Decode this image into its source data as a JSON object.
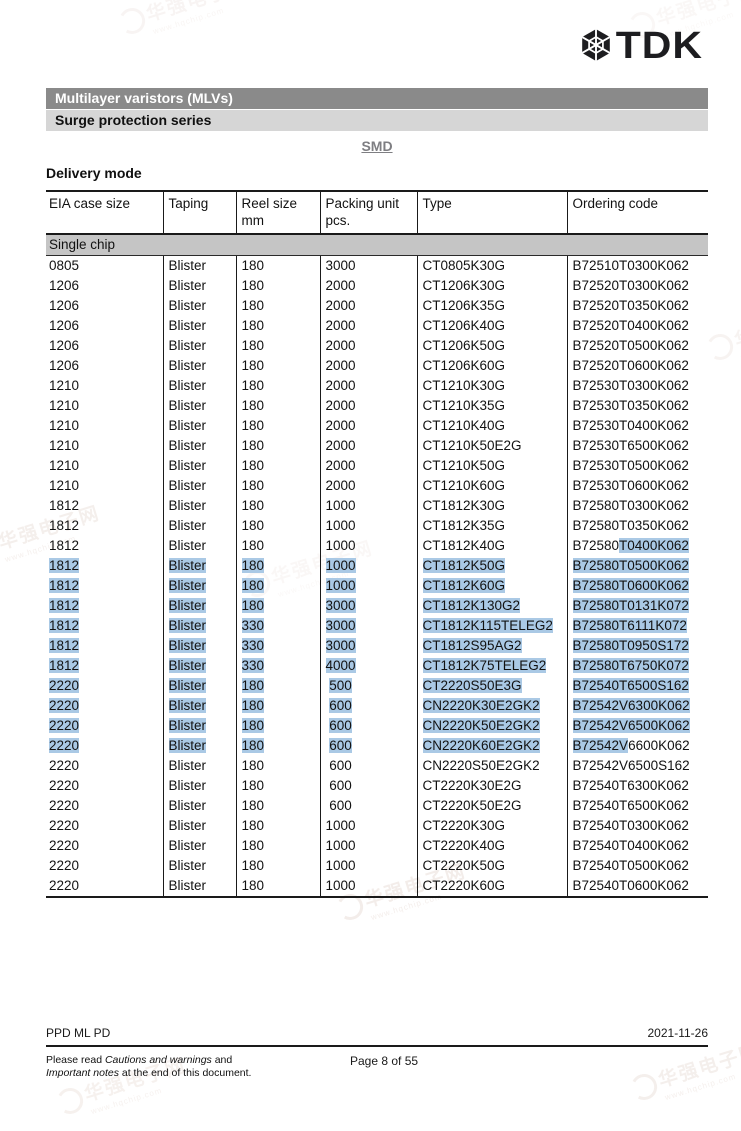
{
  "brand": {
    "name": "TDK"
  },
  "header": {
    "product_line": "Multilayer varistors (MLVs)",
    "series": "Surge protection series",
    "package_link": "SMD",
    "section_heading": "Delivery mode"
  },
  "table": {
    "columns": [
      "EIA case size",
      "Taping",
      "Reel size\nmm",
      "Packing unit\npcs.",
      "Type",
      "Ordering code"
    ],
    "group_label": "Single chip",
    "rows": [
      {
        "cells": [
          "0805",
          "Blister",
          "180",
          "3000",
          "CT0805K30G",
          "B72510T0300K062"
        ]
      },
      {
        "cells": [
          "1206",
          "Blister",
          "180",
          "2000",
          "CT1206K30G",
          "B72520T0300K062"
        ]
      },
      {
        "cells": [
          "1206",
          "Blister",
          "180",
          "2000",
          "CT1206K35G",
          "B72520T0350K062"
        ]
      },
      {
        "cells": [
          "1206",
          "Blister",
          "180",
          "2000",
          "CT1206K40G",
          "B72520T0400K062"
        ]
      },
      {
        "cells": [
          "1206",
          "Blister",
          "180",
          "2000",
          "CT1206K50G",
          "B72520T0500K062"
        ]
      },
      {
        "cells": [
          "1206",
          "Blister",
          "180",
          "2000",
          "CT1206K60G",
          "B72520T0600K062"
        ]
      },
      {
        "cells": [
          "1210",
          "Blister",
          "180",
          "2000",
          "CT1210K30G",
          "B72530T0300K062"
        ]
      },
      {
        "cells": [
          "1210",
          "Blister",
          "180",
          "2000",
          "CT1210K35G",
          "B72530T0350K062"
        ]
      },
      {
        "cells": [
          "1210",
          "Blister",
          "180",
          "2000",
          "CT1210K40G",
          "B72530T0400K062"
        ]
      },
      {
        "cells": [
          "1210",
          "Blister",
          "180",
          "2000",
          "CT1210K50E2G",
          "B72530T6500K062"
        ]
      },
      {
        "cells": [
          "1210",
          "Blister",
          "180",
          "2000",
          "CT1210K50G",
          "B72530T0500K062"
        ]
      },
      {
        "cells": [
          "1210",
          "Blister",
          "180",
          "2000",
          "CT1210K60G",
          "B72530T0600K062"
        ]
      },
      {
        "cells": [
          "1812",
          "Blister",
          "180",
          "1000",
          "CT1812K30G",
          "B72580T0300K062"
        ]
      },
      {
        "cells": [
          "1812",
          "Blister",
          "180",
          "1000",
          "CT1812K35G",
          "B72580T0350K062"
        ]
      },
      {
        "cells": [
          "1812",
          "Blister",
          "180",
          "1000",
          "CT1812K40G",
          {
            "pre": "B72580",
            "hl": "T0400K062"
          }
        ]
      },
      {
        "hl": "all",
        "cells": [
          "1812",
          "Blister",
          "180",
          "1000",
          "CT1812K50G",
          "B72580T0500K062"
        ]
      },
      {
        "hl": "all",
        "cells": [
          "1812",
          "Blister",
          "180",
          "1000",
          "CT1812K60G",
          "B72580T0600K062"
        ]
      },
      {
        "hl": "all",
        "cells": [
          "1812",
          "Blister",
          "180",
          "3000",
          "CT1812K130G2",
          "B72580T0131K072"
        ]
      },
      {
        "hl": "all",
        "cells": [
          "1812",
          "Blister",
          "330",
          "3000",
          "CT1812K115TELEG2",
          "B72580T6111K072"
        ]
      },
      {
        "hl": "all",
        "cells": [
          "1812",
          "Blister",
          "330",
          "3000",
          "CT1812S95AG2",
          "B72580T0950S172"
        ]
      },
      {
        "hl": "all",
        "cells": [
          "1812",
          "Blister",
          "330",
          "4000",
          "CT1812K75TELEG2",
          "B72580T6750K072"
        ]
      },
      {
        "hl": "all",
        "cells": [
          "2220",
          "Blister",
          "180",
          {
            "pre": " ",
            "hl": "500"
          },
          "CT2220S50E3G",
          "B72540T6500S162"
        ]
      },
      {
        "hl": "all",
        "cells": [
          "2220",
          "Blister",
          "180",
          {
            "pre": " ",
            "hl": "600"
          },
          "CN2220K30E2GK2",
          "B72542V6300K062"
        ]
      },
      {
        "hl": "all",
        "cells": [
          "2220",
          "Blister",
          "180",
          {
            "pre": " ",
            "hl": "600"
          },
          "CN2220K50E2GK2",
          "B72542V6500K062"
        ]
      },
      {
        "hl": "all",
        "cells": [
          "2220",
          "Blister",
          "180",
          {
            "pre": " ",
            "hl": "600"
          },
          "CN2220K60E2GK2",
          {
            "hl": "B72542V",
            "post": "6600K062"
          }
        ]
      },
      {
        "cells": [
          "2220",
          "Blister",
          "180",
          " 600",
          "CN2220S50E2GK2",
          "B72542V6500S162"
        ]
      },
      {
        "cells": [
          "2220",
          "Blister",
          "180",
          " 600",
          "CT2220K30E2G",
          "B72540T6300K062"
        ]
      },
      {
        "cells": [
          "2220",
          "Blister",
          "180",
          " 600",
          "CT2220K50E2G",
          "B72540T6500K062"
        ]
      },
      {
        "cells": [
          "2220",
          "Blister",
          "180",
          "1000",
          "CT2220K30G",
          "B72540T0300K062"
        ]
      },
      {
        "cells": [
          "2220",
          "Blister",
          "180",
          "1000",
          "CT2220K40G",
          "B72540T0400K062"
        ]
      },
      {
        "cells": [
          "2220",
          "Blister",
          "180",
          "1000",
          "CT2220K50G",
          "B72540T0500K062"
        ]
      },
      {
        "cells": [
          "2220",
          "Blister",
          "180",
          "1000",
          "CT2220K60G",
          "B72540T0600K062"
        ]
      }
    ]
  },
  "footer": {
    "department": "PPD ML PD",
    "date": "2021-11-26",
    "note_pre": "Please read ",
    "note_italic1": "Cautions and warnings",
    "note_mid": " and",
    "note_italic2": "Important notes",
    "note_post": " at the end of this document.",
    "page_info": "Page 8 of 55"
  },
  "watermark": {
    "line1": "华强电子网",
    "line2": "www.hqchip.com"
  },
  "colors": {
    "selection": "#aac9e5",
    "bar_dark": "#8a8a8a",
    "bar_light": "#d6d6d6",
    "band": "#c5c5c5"
  }
}
